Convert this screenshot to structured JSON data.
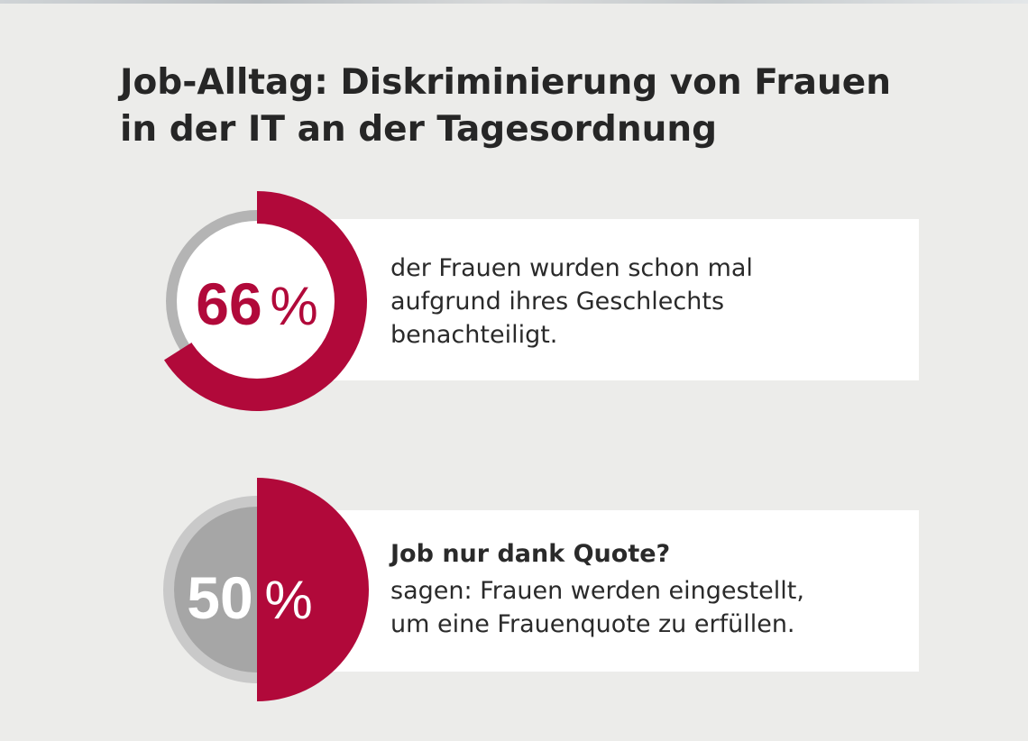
{
  "title": {
    "line1": "Job-Alltag: Diskriminierung von Frauen",
    "line2": "in der IT an der Tagesordnung"
  },
  "colors": {
    "accent": "#b1093a",
    "track": "#b4b4b4",
    "track_fill": "#a6a6a6",
    "background": "#ececea",
    "card": "#ffffff",
    "text": "#2a2a2a"
  },
  "chart_data": [
    {
      "type": "pie",
      "value": 66,
      "unit": "%",
      "label_number": "66",
      "label_unit": "%",
      "description": [
        "der Frauen wurden schon mal",
        "aufgrund ihres Geschlechts",
        "benachteiligt."
      ]
    },
    {
      "type": "pie",
      "value": 50,
      "unit": "%",
      "label_number": "50",
      "label_unit": "%",
      "heading": "Job nur dank Quote?",
      "description": [
        "sagen: Frauen werden eingestellt,",
        "um eine Frauenquote zu erfüllen."
      ]
    }
  ]
}
